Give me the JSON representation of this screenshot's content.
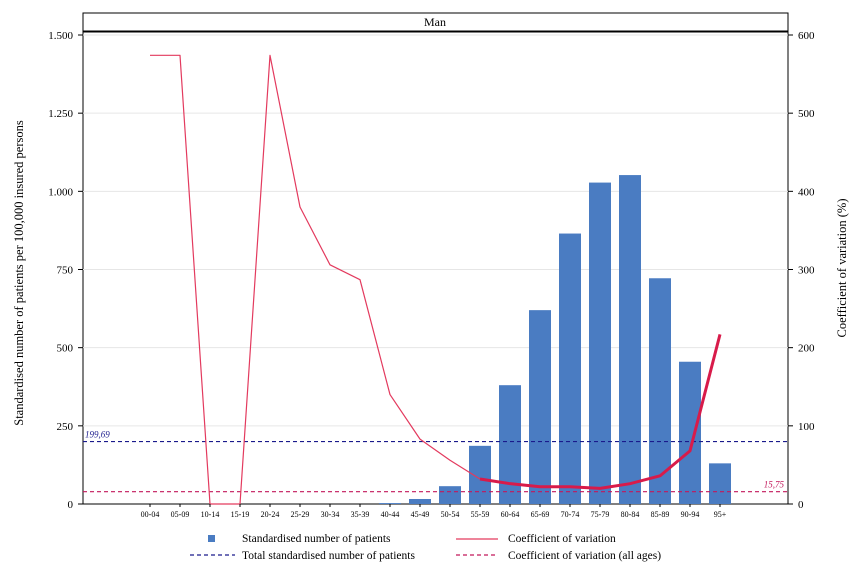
{
  "chart_data": {
    "type": "bar",
    "panel_title": "Man",
    "categories": [
      "00-04",
      "05-09",
      "10-14",
      "15-19",
      "20-24",
      "25-29",
      "30-34",
      "35-39",
      "40-44",
      "45-49",
      "50-54",
      "55-59",
      "60-64",
      "65-69",
      "70-74",
      "75-79",
      "80-84",
      "85-89",
      "90-94",
      "95+"
    ],
    "ylabel": "Standardised number of patients per 100,000 insured persons",
    "y2label": "Coefficient of variation (%)",
    "ylim": [
      0,
      1500
    ],
    "y2lim": [
      0,
      600
    ],
    "yticks": [
      0,
      250,
      500,
      750,
      1000,
      1250,
      1500
    ],
    "ytick_labels": [
      "0",
      "250",
      "500",
      "750",
      "1.000",
      "1.250",
      "1.500"
    ],
    "y2ticks": [
      0,
      100,
      200,
      300,
      400,
      500,
      600
    ],
    "y2tick_labels": [
      "0",
      "100",
      "200",
      "300",
      "400",
      "500",
      "600"
    ],
    "grid": true,
    "legend_position": "bottom",
    "series": [
      {
        "name": "Standardised number of patients",
        "type": "bar",
        "axis": "left",
        "color": "#4a7cc2",
        "values": [
          0,
          0,
          0,
          0,
          0,
          0,
          0,
          0,
          3,
          16,
          57,
          186,
          380,
          620,
          865,
          1028,
          1052,
          722,
          455,
          130
        ]
      },
      {
        "name": "Coefficient of variation",
        "type": "line",
        "axis": "right",
        "color": "#e33a5e",
        "values": [
          574,
          574,
          0,
          0,
          574,
          380,
          306,
          287,
          140,
          83,
          56,
          32,
          26,
          22,
          22,
          20,
          26,
          36,
          68,
          217
        ]
      },
      {
        "name": "Total standardised number of patients",
        "type": "hline",
        "axis": "left",
        "color": "#1a1a8c",
        "value": 199.69,
        "label": "199,69"
      },
      {
        "name": "Coefficient of variation (all ages)",
        "type": "hline",
        "axis": "right",
        "color": "#c2185b",
        "value": 15.75,
        "label": "15,75"
      }
    ]
  }
}
